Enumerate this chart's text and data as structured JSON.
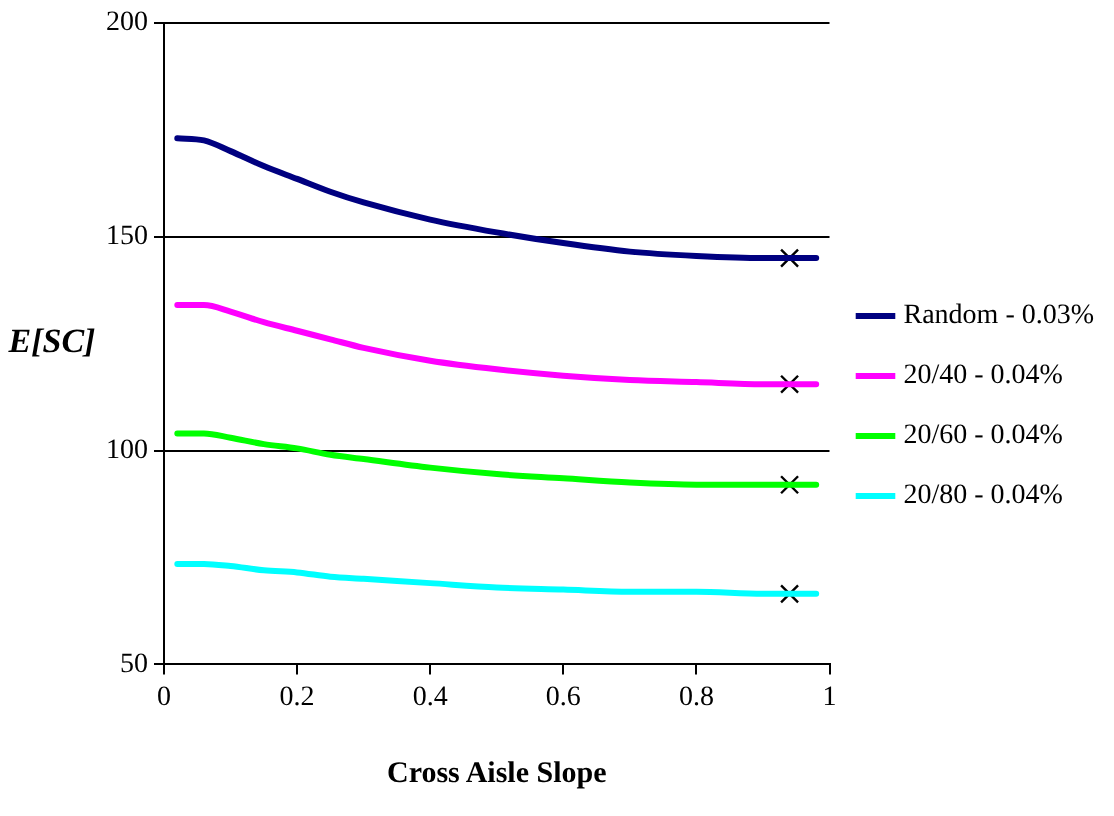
{
  "chart_data": {
    "type": "line",
    "xlabel": "Cross Aisle Slope",
    "ylabel": "E[SC]",
    "xlim": [
      0,
      1
    ],
    "xticks": [
      0,
      0.2,
      0.4,
      0.6,
      0.8,
      1
    ],
    "ylim": [
      50,
      200
    ],
    "yticks": [
      50,
      100,
      150,
      200
    ],
    "grid": "y",
    "legend": "right",
    "marker": "none",
    "line_style": "solid",
    "x": [
      0.02,
      0.06,
      0.1,
      0.15,
      0.2,
      0.25,
      0.3,
      0.4,
      0.5,
      0.6,
      0.7,
      0.8,
      0.9,
      0.94,
      0.98
    ],
    "series": [
      {
        "name": "Random - 0.03%",
        "color": "#000080",
        "values": [
          173,
          172.5,
          170,
          166.5,
          163.5,
          160.5,
          158,
          154,
          151,
          148.5,
          146.5,
          145.5,
          145,
          145,
          145
        ]
      },
      {
        "name": "20/40 - 0.04%",
        "color": "#ff00ff",
        "values": [
          134,
          134,
          132.5,
          130,
          128,
          126,
          124,
          121,
          119,
          117.5,
          116.5,
          116,
          115.5,
          115.5,
          115.5
        ]
      },
      {
        "name": "20/60 - 0.04%",
        "color": "#00ff00",
        "values": [
          104,
          104,
          103,
          101.5,
          100.5,
          99,
          98,
          96,
          94.5,
          93.5,
          92.5,
          92,
          92,
          92,
          92
        ]
      },
      {
        "name": "20/80 - 0.04%",
        "color": "#00ffff",
        "values": [
          73.5,
          73.5,
          73,
          72,
          71.5,
          70.5,
          70,
          69,
          68,
          67.5,
          67,
          67,
          66.5,
          66.5,
          66.5
        ]
      },
      {
        "type": "scatter",
        "marker": "cross",
        "color": "#000000",
        "values": [
          null,
          null,
          null,
          null,
          null,
          null,
          null,
          null,
          null,
          null,
          null,
          null,
          null,
          145,
          null
        ]
      },
      {
        "type": "scatter",
        "marker": "cross",
        "color": "#000000",
        "values": [
          null,
          null,
          null,
          null,
          null,
          null,
          null,
          null,
          null,
          null,
          null,
          null,
          null,
          115.5,
          null
        ]
      },
      {
        "type": "scatter",
        "marker": "cross",
        "color": "#000000",
        "values": [
          null,
          null,
          null,
          null,
          null,
          null,
          null,
          null,
          null,
          null,
          null,
          null,
          null,
          92,
          null
        ]
      },
      {
        "type": "scatter",
        "marker": "cross",
        "color": "#000000",
        "values": [
          null,
          null,
          null,
          null,
          null,
          null,
          null,
          null,
          null,
          null,
          null,
          null,
          null,
          66.5,
          null
        ]
      }
    ]
  }
}
